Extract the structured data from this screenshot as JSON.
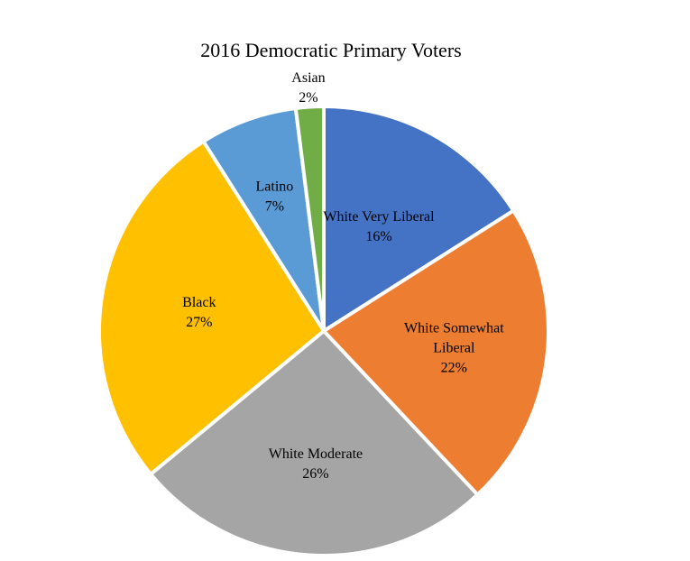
{
  "chart_data": {
    "type": "pie",
    "title": "2016 Democratic Primary Voters",
    "slices": [
      {
        "label": "White Very Liberal",
        "label_lines": [
          "White Very Liberal"
        ],
        "value": 16,
        "value_label": "16%",
        "color": "#4472C4"
      },
      {
        "label": "White Somewhat Liberal",
        "label_lines": [
          "White Somewhat",
          "Liberal"
        ],
        "value": 22,
        "value_label": "22%",
        "color": "#ED7D31"
      },
      {
        "label": "White Moderate",
        "label_lines": [
          "White Moderate"
        ],
        "value": 26,
        "value_label": "26%",
        "color": "#A5A5A5"
      },
      {
        "label": "Black",
        "label_lines": [
          "Black"
        ],
        "value": 27,
        "value_label": "27%",
        "color": "#FFC000"
      },
      {
        "label": "Latino",
        "label_lines": [
          "Latino"
        ],
        "value": 7,
        "value_label": "7%",
        "color": "#5B9BD5"
      },
      {
        "label": "Asian",
        "label_lines": [
          "Asian"
        ],
        "value": 2,
        "value_label": "2%",
        "color": "#70AD47"
      }
    ],
    "start": "12 o'clock",
    "direction": "clockwise",
    "legend": "none"
  }
}
